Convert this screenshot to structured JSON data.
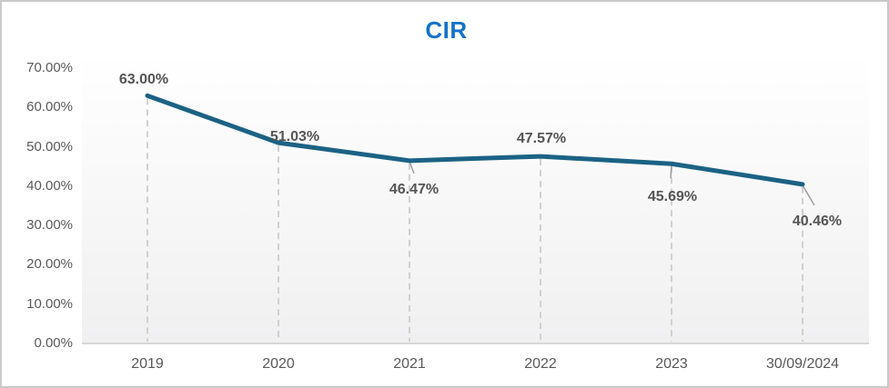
{
  "chart_data": {
    "type": "line",
    "title": "CIR",
    "categories": [
      "2019",
      "2020",
      "2021",
      "2022",
      "2023",
      "30/09/2024"
    ],
    "values": [
      63.0,
      51.03,
      46.47,
      47.57,
      45.69,
      40.46
    ],
    "data_labels": [
      "63.00%",
      "51.03%",
      "46.47%",
      "47.57%",
      "45.69%",
      "40.46%"
    ],
    "y_ticks": [
      "0.00%",
      "10.00%",
      "20.00%",
      "30.00%",
      "40.00%",
      "50.00%",
      "60.00%",
      "70.00%"
    ],
    "y_tick_values": [
      0,
      10,
      20,
      30,
      40,
      50,
      60,
      70
    ],
    "ylim": [
      0,
      70
    ],
    "xlabel": "",
    "ylabel": "",
    "grid": "none",
    "legend": "none",
    "colors": {
      "line": "#1b6284",
      "title": "#1472c8",
      "axis_text": "#595959",
      "data_label_text": "#555555",
      "axis_line": "#d6d6d6",
      "drop_line": "#d0d0d0",
      "leader_line": "#9e9e9e",
      "plot_bg_bottom": "#f0f0f1",
      "frame_border": "#c9c9c9"
    }
  }
}
